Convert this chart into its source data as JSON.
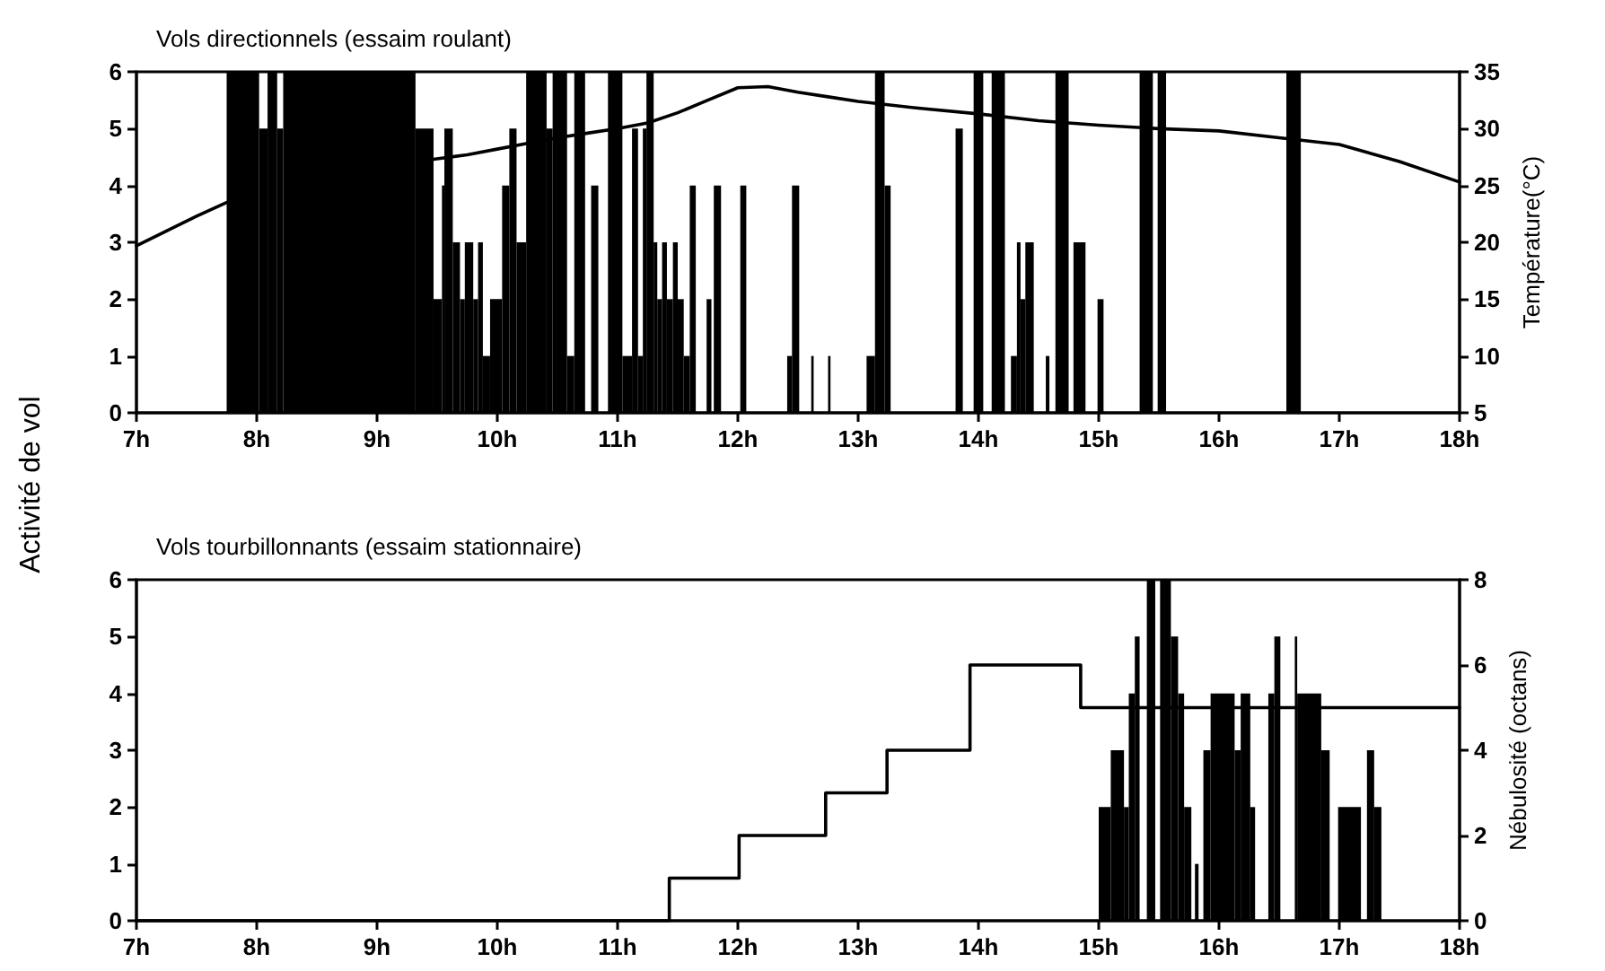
{
  "chart_data": [
    {
      "type": "histogram",
      "title": "Vols directionnels (essaim roulant)",
      "ylabel": "Activité de vol",
      "y2label": "Température(°C)",
      "xlim": [
        7,
        18
      ],
      "xticks": [
        {
          "value": 7,
          "label": "7h"
        },
        {
          "value": 8,
          "label": "8h"
        },
        {
          "value": 9,
          "label": "9h"
        },
        {
          "value": 10,
          "label": "10h"
        },
        {
          "value": 11,
          "label": "11h"
        },
        {
          "value": 12,
          "label": "12h"
        },
        {
          "value": 13,
          "label": "13h"
        },
        {
          "value": 14,
          "label": "14h"
        },
        {
          "value": 15,
          "label": "15h"
        },
        {
          "value": 16,
          "label": "16h"
        },
        {
          "value": 17,
          "label": "17h"
        },
        {
          "value": 18,
          "label": "18h"
        }
      ],
      "ylim": [
        0,
        6
      ],
      "yticks": [
        0,
        1,
        2,
        3,
        4,
        5,
        6
      ],
      "y2lim": [
        5,
        35
      ],
      "y2ticks": [
        5,
        10,
        15,
        20,
        25,
        30,
        35
      ],
      "series": [
        {
          "color": "#000000",
          "bins": [
            7.75,
            8.02,
            8.09,
            8.17,
            8.22,
            9.32,
            9.47,
            9.54,
            9.56,
            9.63,
            9.69,
            9.73,
            9.8,
            9.84,
            9.88,
            9.94,
            10.04,
            10.1,
            10.16,
            10.24,
            10.41,
            10.46,
            10.58,
            10.64,
            10.73,
            10.78,
            10.84,
            10.92,
            11.04,
            11.12,
            11.17,
            11.21,
            11.24,
            11.3,
            11.33,
            11.37,
            11.41,
            11.46,
            11.5,
            11.55,
            11.6,
            11.65,
            11.74,
            11.78,
            11.8,
            11.86,
            12.02,
            12.07,
            12.41,
            12.45,
            12.51,
            12.61,
            12.63,
            12.75,
            12.77,
            13.07,
            13.14,
            13.22,
            13.27,
            13.81,
            13.87,
            13.96,
            14.04,
            14.11,
            14.22,
            14.27,
            14.32,
            14.35,
            14.39,
            14.46,
            14.56,
            14.59,
            14.64,
            14.75,
            14.79,
            14.89,
            14.99,
            15.04,
            15.34,
            15.45,
            15.49,
            15.56,
            16.56,
            16.68
          ],
          "values": [
            6,
            5,
            6,
            5,
            6,
            5,
            2,
            4,
            5,
            3,
            2,
            3,
            2,
            3,
            1,
            2,
            4,
            5,
            3,
            6,
            5,
            6,
            1,
            6,
            0,
            4,
            0,
            6,
            1,
            5,
            1,
            5,
            6,
            3,
            2,
            3,
            2,
            3,
            2,
            1,
            4,
            0,
            2,
            0,
            4,
            0,
            4,
            0,
            1,
            4,
            0,
            1,
            0,
            1,
            0,
            1,
            6,
            4,
            0,
            5,
            0,
            6,
            0,
            6,
            0,
            1,
            3,
            2,
            3,
            0,
            1,
            0,
            6,
            0,
            3,
            0,
            2,
            0,
            6,
            0,
            6,
            0,
            6
          ]
        },
        {
          "type": "line",
          "axis": "y2",
          "color": "#000000",
          "x": [
            7,
            7.25,
            7.5,
            7.75,
            8.5,
            9.47,
            9.75,
            10,
            10.25,
            10.5,
            10.75,
            11,
            11.25,
            11.5,
            11.75,
            12,
            12.25,
            12.5,
            12.75,
            13,
            13.5,
            14,
            14.5,
            15,
            15.5,
            16,
            16.5,
            17,
            17.5,
            18
          ],
          "values": [
            19.7,
            21,
            22.3,
            23.5,
            null,
            27.3,
            27.7,
            28.2,
            28.7,
            29.2,
            29.6,
            30,
            30.5,
            31.4,
            32.5,
            33.6,
            33.7,
            33.2,
            32.8,
            32.4,
            31.8,
            31.3,
            30.7,
            30.3,
            30,
            29.8,
            29.2,
            28.6,
            27.1,
            25.3
          ]
        }
      ]
    },
    {
      "type": "histogram",
      "title": "Vols tourbillonnants (essaim stationnaire)",
      "y2label": "Nébulosité (octans)",
      "xlim": [
        7,
        18
      ],
      "xticks": [
        {
          "value": 7,
          "label": "7h"
        },
        {
          "value": 8,
          "label": "8h"
        },
        {
          "value": 9,
          "label": "9h"
        },
        {
          "value": 10,
          "label": "10h"
        },
        {
          "value": 11,
          "label": "11h"
        },
        {
          "value": 12,
          "label": "12h"
        },
        {
          "value": 13,
          "label": "13h"
        },
        {
          "value": 14,
          "label": "14h"
        },
        {
          "value": 15,
          "label": "15h"
        },
        {
          "value": 16,
          "label": "16h"
        },
        {
          "value": 17,
          "label": "17h"
        },
        {
          "value": 18,
          "label": "18h"
        }
      ],
      "ylim": [
        0,
        6
      ],
      "yticks": [
        0,
        1,
        2,
        3,
        4,
        5,
        6
      ],
      "y2lim": [
        0,
        8
      ],
      "y2ticks": [
        0,
        2,
        4,
        6,
        8
      ],
      "series": [
        {
          "color": "#000000",
          "bins": [
            15,
            15.1,
            15.21,
            15.25,
            15.3,
            15.34,
            15.4,
            15.47,
            15.51,
            15.6,
            15.66,
            15.71,
            15.77,
            15.8,
            15.83,
            15.87,
            15.93,
            16.13,
            16.18,
            16.26,
            16.3,
            16.41,
            16.46,
            16.51,
            16.63,
            16.65,
            16.85,
            16.92,
            16.99,
            17.18,
            17.23,
            17.29,
            17.35
          ],
          "values": [
            2,
            3,
            2,
            4,
            5,
            0,
            6,
            0,
            6,
            5,
            4,
            2,
            0,
            1,
            0,
            3,
            4,
            3,
            4,
            2,
            0,
            4,
            5,
            0,
            5,
            4,
            3,
            0,
            2,
            0,
            3,
            2
          ]
        },
        {
          "type": "step",
          "axis": "y2",
          "color": "#000000",
          "x": [
            7,
            11.43,
            12.01,
            12.73,
            13.24,
            13.93,
            14.85,
            18
          ],
          "values": [
            0,
            1,
            2,
            3,
            4,
            6,
            5,
            5
          ]
        }
      ]
    }
  ]
}
